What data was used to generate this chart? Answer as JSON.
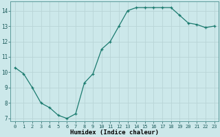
{
  "x": [
    0,
    1,
    2,
    3,
    4,
    5,
    6,
    7,
    8,
    9,
    10,
    11,
    12,
    13,
    14,
    15,
    16,
    17,
    18,
    19,
    20,
    21,
    22,
    23
  ],
  "y": [
    10.3,
    9.9,
    9.0,
    8.0,
    7.7,
    7.2,
    7.0,
    7.3,
    9.3,
    9.9,
    11.5,
    12.0,
    13.0,
    14.0,
    14.2,
    14.2,
    14.2,
    14.2,
    14.2,
    13.7,
    13.2,
    13.1,
    12.9,
    13.0
  ],
  "line_color": "#1a7a6e",
  "marker": "+",
  "bg_color": "#cce8ea",
  "grid_color": "#b8d4d6",
  "xlabel": "Humidex (Indice chaleur)",
  "ylim": [
    6.8,
    14.6
  ],
  "xlim": [
    -0.5,
    23.5
  ],
  "yticks": [
    7,
    8,
    9,
    10,
    11,
    12,
    13,
    14
  ],
  "xticks": [
    0,
    1,
    2,
    3,
    4,
    5,
    6,
    7,
    8,
    9,
    10,
    11,
    12,
    13,
    14,
    15,
    16,
    17,
    18,
    19,
    20,
    21,
    22,
    23
  ],
  "title_fontsize": 6,
  "xlabel_fontsize": 6.5,
  "ytick_fontsize": 5.5,
  "xtick_fontsize": 5.0
}
